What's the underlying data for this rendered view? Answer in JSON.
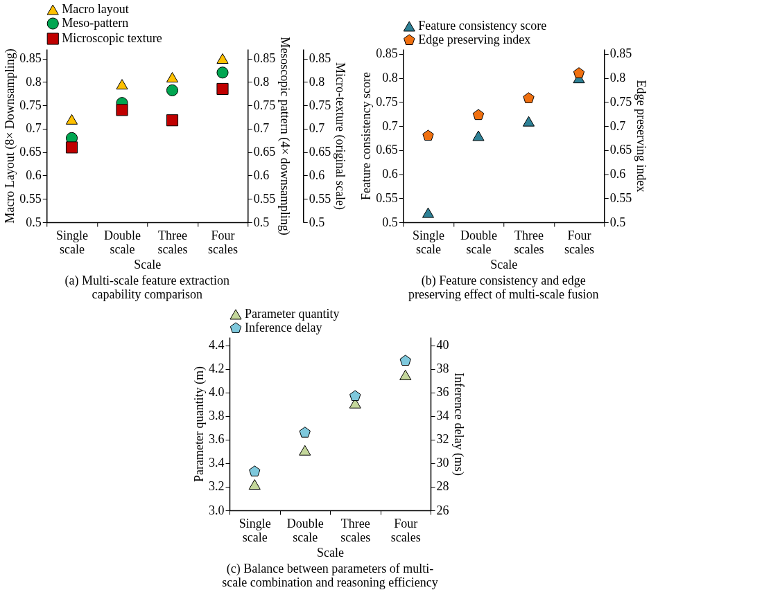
{
  "chart_data": [
    {
      "type": "scatter",
      "title": "(a) Multi-scale feature extraction capability comparison",
      "xlabel": "Scale",
      "ylabel": "Macro Layout (8× Downsampling)",
      "y2label": "Mesoscopic pattern (4× downsampling)",
      "y3label": "Micro-texture (original scale)",
      "categories": [
        "Single scale",
        "Double scale",
        "Three scales",
        "Four scales"
      ],
      "series": [
        {
          "name": "Macro layout",
          "color": "#ffc000",
          "marker": "triangle",
          "values": [
            0.72,
            0.795,
            0.81,
            0.85
          ]
        },
        {
          "name": "Meso-pattern",
          "color": "#00a651",
          "marker": "circle",
          "axis": "y2",
          "values": [
            0.68,
            0.755,
            0.782,
            0.82
          ]
        },
        {
          "name": "Microscopic texture",
          "color": "#c00000",
          "marker": "square",
          "axis": "y3",
          "values": [
            0.66,
            0.74,
            0.718,
            0.785
          ]
        }
      ],
      "ylim": [
        0.5,
        0.87
      ],
      "yticks": [
        0.5,
        0.55,
        0.6,
        0.65,
        0.7,
        0.75,
        0.8,
        0.85
      ],
      "y2lim": [
        0.5,
        0.87
      ],
      "y2ticks": [
        0.5,
        0.55,
        0.6,
        0.65,
        0.7,
        0.75,
        0.8,
        0.85
      ],
      "y3lim": [
        0.5,
        0.87
      ],
      "y3ticks": [
        0.5,
        0.55,
        0.6,
        0.65,
        0.7,
        0.75,
        0.8,
        0.85
      ],
      "grid": false,
      "legend": "top left"
    },
    {
      "type": "scatter",
      "title": "(b) Feature consistency and edge preserving effect of multi-scale fusion",
      "xlabel": "Scale",
      "ylabel": "Feature consistency score",
      "y2label": "Edge preserving index",
      "categories": [
        "Single scale",
        "Double scale",
        "Three scales",
        "Four scales"
      ],
      "series": [
        {
          "name": "Feature consistency score",
          "color": "#2e8196",
          "marker": "triangle",
          "values": [
            0.52,
            0.68,
            0.71,
            0.8
          ]
        },
        {
          "name": "Edge preserving index",
          "color": "#f07010",
          "axis": "y2",
          "values": [
            0.68,
            0.723,
            0.758,
            0.81
          ]
        }
      ],
      "ylim": [
        0.5,
        0.86
      ],
      "yticks": [
        0.5,
        0.55,
        0.6,
        0.65,
        0.7,
        0.75,
        0.8,
        0.85
      ],
      "y2lim": [
        0.5,
        0.86
      ],
      "y2ticks": [
        0.5,
        0.55,
        0.6,
        0.65,
        0.7,
        0.75,
        0.8,
        0.85
      ],
      "grid": false,
      "legend": "top left"
    },
    {
      "type": "scatter",
      "title": "(c) Balance between parameters of multi-scale combination and reasoning efficiency",
      "xlabel": "Scale",
      "ylabel": "Parameter quantity (m)",
      "y2label": "Inference delay (ms)",
      "categories": [
        "Single scale",
        "Double scale",
        "Three scales",
        "Four scales"
      ],
      "series": [
        {
          "name": "Parameter quantity",
          "color": "#c4d79b",
          "marker": "triangle",
          "values": [
            3.22,
            3.51,
            3.91,
            4.15
          ]
        },
        {
          "name": "Inference delay",
          "color": "#7ec8dc",
          "axis": "y2",
          "values": [
            29.3,
            32.6,
            35.7,
            38.7
          ]
        }
      ],
      "ylim": [
        3.0,
        4.47
      ],
      "yticks": [
        {
          "value": 3.0,
          "label": "3.0"
        },
        3.2,
        3.4,
        3.6,
        3.8,
        {
          "value": 4.0,
          "label": "4.0"
        },
        4.2,
        4.4
      ],
      "y2lim": [
        26,
        40.7
      ],
      "y2ticks": [
        26,
        28,
        30,
        32,
        34,
        36,
        38,
        40
      ],
      "grid": false,
      "legend": "top left"
    }
  ]
}
